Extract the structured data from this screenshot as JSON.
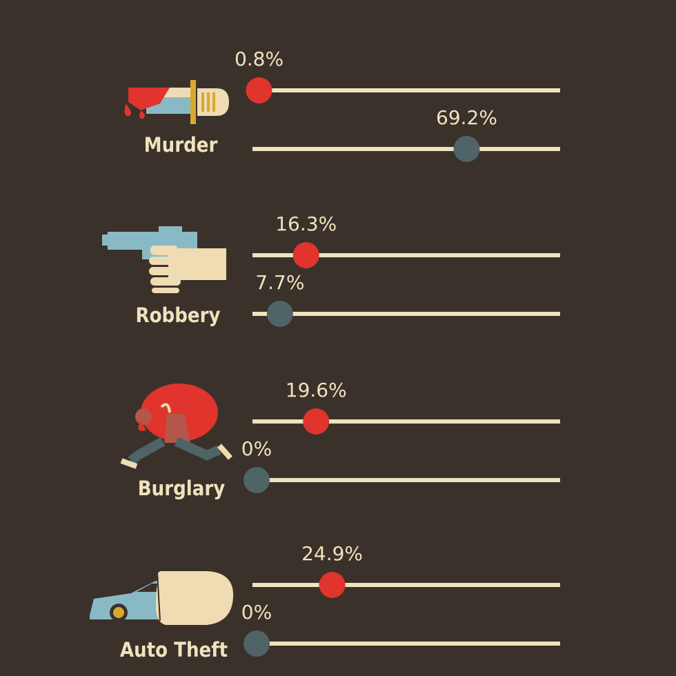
{
  "colors": {
    "background": "#3a312b",
    "track": "#efe3be",
    "text": "#efe3be",
    "series_a": "#e0342d",
    "series_b": "#4e6467",
    "icon_blue": "#8ab9c6",
    "icon_cream": "#efdcb2"
  },
  "chart_data": {
    "type": "dot",
    "xlim": [
      0,
      100
    ],
    "categories": [
      "Murder",
      "Robbery",
      "Burglary",
      "Auto Theft"
    ],
    "icons": [
      "knife-icon",
      "gun-icon",
      "burglar-icon",
      "car-icon"
    ],
    "series": [
      {
        "values": [
          0.8,
          16.3,
          19.6,
          24.9
        ],
        "labels": [
          "0.8%",
          "16.3%",
          "19.6%",
          "24.9%"
        ]
      },
      {
        "values": [
          69.2,
          7.7,
          0,
          0
        ],
        "labels": [
          "69.2%",
          "7.7%",
          "0%",
          "0%"
        ]
      }
    ]
  }
}
